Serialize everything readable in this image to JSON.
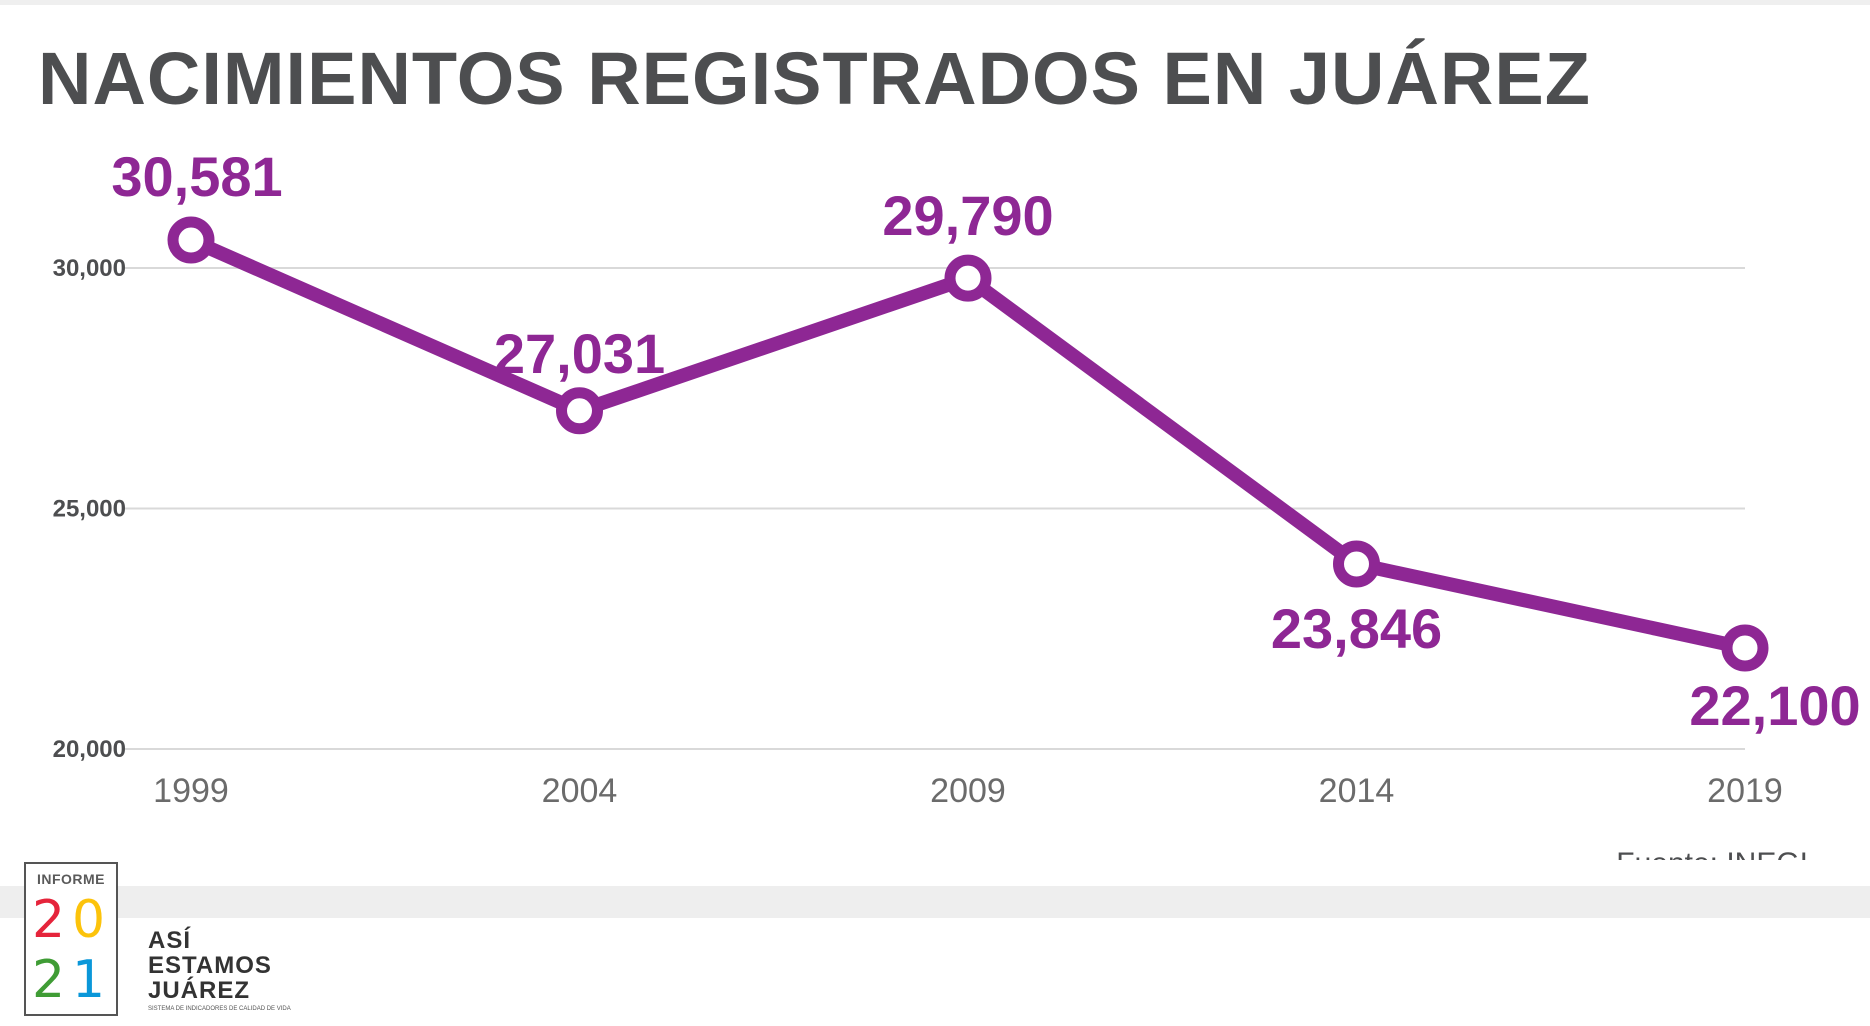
{
  "title": "NACIMIENTOS REGISTRADOS EN JUÁREZ",
  "source": "Fuente: INEGI",
  "colors": {
    "line": "#8e2794",
    "title": "#4d4e50",
    "grid": "#d9d9d9",
    "tick": "#6b6b6b",
    "badge_digits": [
      "#e5243b",
      "#fcc30b",
      "#3f9c35",
      "#0a97d9"
    ]
  },
  "chart_data": {
    "type": "line",
    "title": "NACIMIENTOS REGISTRADOS EN JUÁREZ",
    "xlabel": "",
    "ylabel": "",
    "categories": [
      "1999",
      "2004",
      "2009",
      "2014",
      "2019"
    ],
    "series": [
      {
        "name": "Nacimientos registrados",
        "values": [
          30581,
          27031,
          29790,
          23846,
          22100
        ]
      }
    ],
    "data_labels": [
      "30,581",
      "27,031",
      "29,790",
      "23,846",
      "22,100"
    ],
    "label_positions": [
      "above",
      "above",
      "above",
      "below",
      "below"
    ],
    "ylim": [
      20000,
      30000
    ],
    "yticks": [
      20000,
      25000,
      30000
    ],
    "ytick_labels": [
      "20,000",
      "25,000",
      "30,000"
    ],
    "grid": true,
    "legend": "none"
  },
  "branding": {
    "badge_word": "INFORME",
    "year_digits": [
      "2",
      "0",
      "2",
      "1"
    ],
    "logo_lines": [
      "ASÍ",
      "ESTAMOS",
      "JUÁREZ"
    ],
    "logo_subtitle": "SISTEMA DE INDICADORES DE CALIDAD DE VIDA"
  }
}
